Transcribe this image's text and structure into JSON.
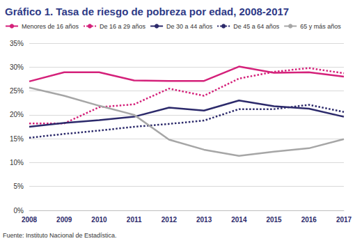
{
  "chart_data": {
    "type": "line",
    "title": "Gráfico 1. Tasa de riesgo de pobreza por edad, 2008-2017",
    "annotations": [
      "Fuente: Instituto Nacional de Estadística."
    ],
    "categories": [
      "2008",
      "2009",
      "2010",
      "2011",
      "2012",
      "2013",
      "2014",
      "2015",
      "2016",
      "2017"
    ],
    "series": [
      {
        "name": "Menores de 16 años",
        "color": "#d4217a",
        "line_style": "solid",
        "values": [
          27.0,
          28.9,
          28.9,
          27.2,
          27.1,
          27.1,
          30.1,
          28.8,
          28.9,
          28.0
        ]
      },
      {
        "name": "De 16 a 29 años",
        "color": "#d4217a",
        "line_style": "dotted",
        "values": [
          18.2,
          18.2,
          21.6,
          22.2,
          25.5,
          24.0,
          27.6,
          29.0,
          29.8,
          28.7
        ]
      },
      {
        "name": "De 30 a 44 años",
        "color": "#2c2a6b",
        "line_style": "solid",
        "values": [
          17.5,
          18.3,
          18.9,
          19.6,
          21.5,
          20.9,
          23.0,
          21.8,
          21.3,
          19.6
        ]
      },
      {
        "name": "De 45 a 64 años",
        "color": "#2c2a6b",
        "line_style": "dotted",
        "values": [
          15.2,
          16.0,
          16.7,
          17.5,
          18.1,
          18.8,
          21.2,
          21.2,
          22.1,
          20.6
        ]
      },
      {
        "name": "65 y más años",
        "color": "#a6a6a6",
        "line_style": "solid",
        "values": [
          25.7,
          24.0,
          21.9,
          20.0,
          14.8,
          12.7,
          11.4,
          12.3,
          13.0,
          14.9
        ]
      }
    ],
    "ylim": [
      0,
      35
    ],
    "yticks": [
      {
        "value": 0,
        "label": "0%"
      },
      {
        "value": 5,
        "label": "5%"
      },
      {
        "value": 10,
        "label": "10%"
      },
      {
        "value": 15,
        "label": "15%"
      },
      {
        "value": 20,
        "label": "20%"
      },
      {
        "value": 25,
        "label": "25%"
      },
      {
        "value": 30,
        "label": "30%"
      },
      {
        "value": 35,
        "label": "35%"
      }
    ],
    "grid": true,
    "legend": "top-left"
  }
}
